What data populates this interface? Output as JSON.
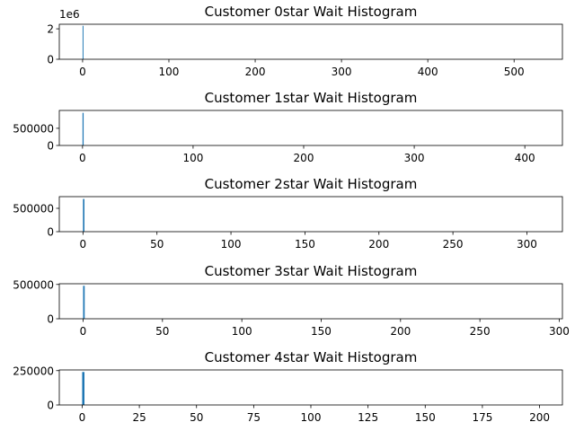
{
  "chart_data": [
    {
      "type": "histogram",
      "title": "Customer 0star Wait Histogram",
      "bins": [
        0,
        1
      ],
      "counts": [
        2200000
      ],
      "color": "#1f77b4",
      "xlim": [
        -27,
        556
      ],
      "xticks": [
        0,
        100,
        200,
        300,
        400,
        500
      ],
      "ylim": [
        0,
        2300000
      ],
      "yticks": [
        0,
        {
          "value": 2000000,
          "label": "2"
        }
      ],
      "y_offset_label": "1e6"
    },
    {
      "type": "histogram",
      "title": "Customer 1star Wait Histogram",
      "bins": [
        0,
        1
      ],
      "counts": [
        950000
      ],
      "color": "#1f77b4",
      "xlim": [
        -21,
        434
      ],
      "xticks": [
        0,
        100,
        200,
        300,
        400
      ],
      "ylim": [
        0,
        1020000
      ],
      "yticks": [
        0,
        500000
      ]
    },
    {
      "type": "histogram",
      "title": "Customer 2star Wait Histogram",
      "bins": [
        0,
        1
      ],
      "counts": [
        700000
      ],
      "color": "#1f77b4",
      "xlim": [
        -16,
        324
      ],
      "xticks": [
        0,
        50,
        100,
        150,
        200,
        250,
        300
      ],
      "ylim": [
        0,
        750000
      ],
      "yticks": [
        0,
        500000
      ]
    },
    {
      "type": "histogram",
      "title": "Customer 3star Wait Histogram",
      "bins": [
        0,
        1
      ],
      "counts": [
        480000
      ],
      "color": "#1f77b4",
      "xlim": [
        -15,
        302
      ],
      "xticks": [
        0,
        50,
        100,
        150,
        200,
        250,
        300
      ],
      "ylim": [
        0,
        510000
      ],
      "yticks": [
        0,
        500000
      ]
    },
    {
      "type": "histogram",
      "title": "Customer 4star Wait Histogram",
      "bins": [
        0,
        1
      ],
      "counts": [
        240000
      ],
      "color": "#1f77b4",
      "xlim": [
        -10,
        210
      ],
      "xticks": [
        0,
        25,
        50,
        75,
        100,
        125,
        150,
        175,
        200
      ],
      "ylim": [
        0,
        255000
      ],
      "yticks": [
        0,
        250000
      ]
    }
  ]
}
